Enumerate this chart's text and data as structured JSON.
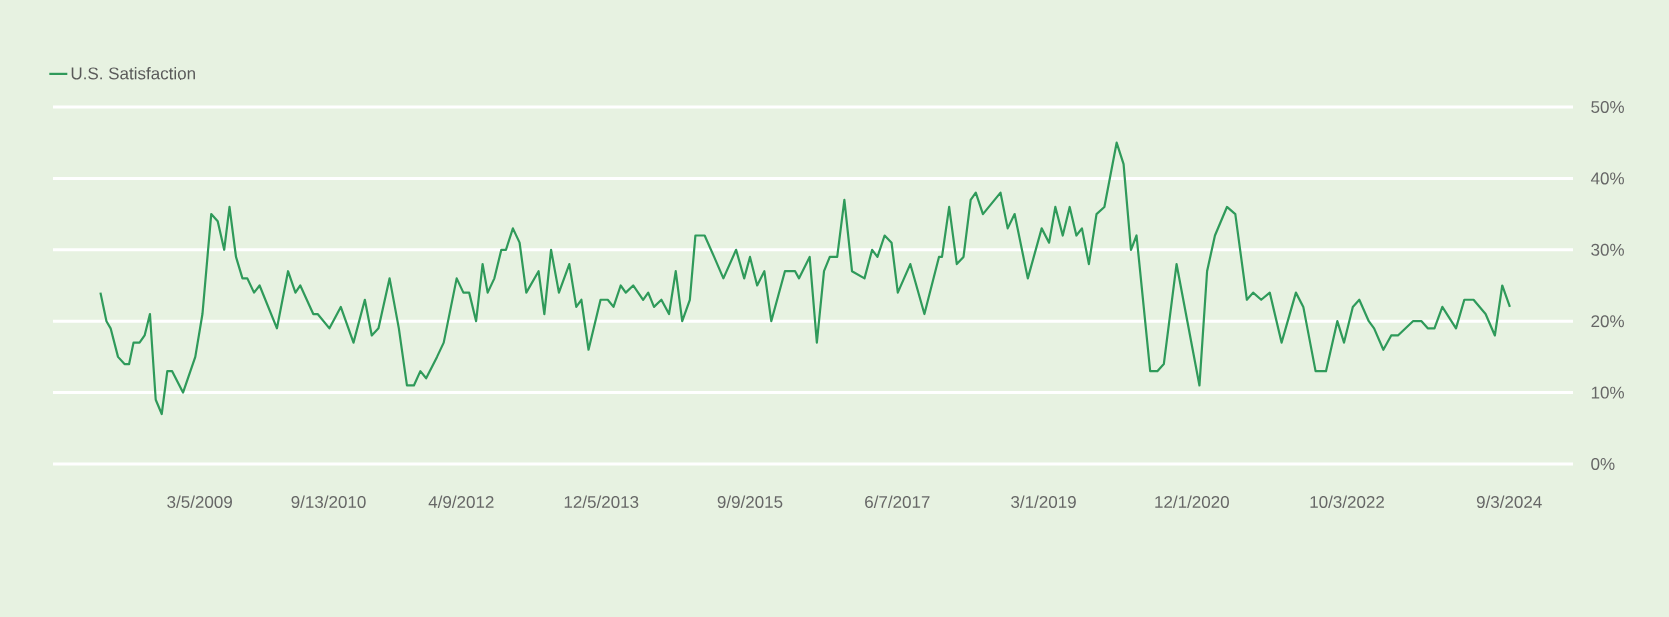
{
  "chart_data": {
    "type": "line",
    "x": [
      "2008-01-01",
      "2008-01-27",
      "2008-02-14",
      "2008-03-17",
      "2008-04-14",
      "2008-05-04",
      "2008-05-23",
      "2008-06-18",
      "2008-07-10",
      "2008-08-02",
      "2008-08-27",
      "2008-09-22",
      "2008-10-16",
      "2008-11-06",
      "2008-12-23",
      "2009-02-14",
      "2009-03-17",
      "2009-04-24",
      "2009-05-22",
      "2009-06-19",
      "2009-07-12",
      "2009-08-09",
      "2009-09-06",
      "2009-09-27",
      "2009-10-26",
      "2009-11-19",
      "2010-02-02",
      "2010-03-22",
      "2010-04-23",
      "2010-05-14",
      "2010-07-09",
      "2010-07-28",
      "2010-09-17",
      "2010-11-05",
      "2010-12-30",
      "2011-02-17",
      "2011-03-19",
      "2011-04-17",
      "2011-06-04",
      "2011-07-14",
      "2011-08-18",
      "2011-09-17",
      "2011-10-15",
      "2011-11-09",
      "2011-12-26",
      "2012-01-24",
      "2012-03-20",
      "2012-04-18",
      "2012-05-13",
      "2012-06-12",
      "2012-07-10",
      "2012-08-01",
      "2012-08-30",
      "2012-09-29",
      "2012-10-19",
      "2012-11-18",
      "2012-12-17",
      "2013-01-15",
      "2013-03-09",
      "2013-04-03",
      "2013-05-02",
      "2013-06-05",
      "2013-07-20",
      "2013-08-19",
      "2013-09-10",
      "2013-10-11",
      "2013-12-02",
      "2014-01-02",
      "2014-01-27",
      "2014-02-27",
      "2014-03-21",
      "2014-04-22",
      "2014-06-04",
      "2014-06-26",
      "2014-07-21",
      "2014-08-22",
      "2014-09-24",
      "2014-10-23",
      "2014-11-20",
      "2014-12-23",
      "2015-01-16",
      "2015-02-25",
      "2015-04-07",
      "2015-05-17",
      "2015-07-11",
      "2015-08-15",
      "2015-09-09",
      "2015-10-10",
      "2015-11-10",
      "2015-12-10",
      "2016-02-07",
      "2016-03-22",
      "2016-04-08",
      "2016-05-24",
      "2016-06-24",
      "2016-07-25",
      "2016-08-19",
      "2016-09-20",
      "2016-10-21",
      "2016-11-23",
      "2017-01-16",
      "2017-02-18",
      "2017-03-13",
      "2017-04-13",
      "2017-05-13",
      "2017-06-09",
      "2017-08-02",
      "2017-10-02",
      "2017-12-04",
      "2017-12-17",
      "2018-01-17",
      "2018-02-19",
      "2018-03-20",
      "2018-04-20",
      "2018-05-12",
      "2018-06-12",
      "2018-08-27",
      "2018-09-27",
      "2018-10-27",
      "2018-12-23",
      "2019-02-21",
      "2019-03-25",
      "2019-04-21",
      "2019-05-23",
      "2019-06-22",
      "2019-07-21",
      "2019-08-14",
      "2019-09-13",
      "2019-10-16",
      "2019-11-19",
      "2020-01-11",
      "2020-02-10",
      "2020-03-13",
      "2020-04-06",
      "2020-06-04",
      "2020-07-05",
      "2020-08-02",
      "2020-09-26",
      "2021-01-03",
      "2021-02-05",
      "2021-03-11",
      "2021-05-02",
      "2021-06-07",
      "2021-07-27",
      "2021-08-23",
      "2021-09-27",
      "2021-11-03",
      "2021-12-24",
      "2022-02-24",
      "2022-03-28",
      "2022-05-20",
      "2022-07-04",
      "2022-08-22",
      "2022-09-20",
      "2022-10-28",
      "2022-11-25",
      "2023-01-05",
      "2023-01-28",
      "2023-03-09",
      "2023-04-12",
      "2023-05-11",
      "2023-07-15",
      "2023-08-21",
      "2023-09-17",
      "2023-10-16",
      "2023-11-19",
      "2024-01-17",
      "2024-02-22",
      "2024-04-02",
      "2024-05-24",
      "2024-07-03",
      "2024-08-04",
      "2024-09-06"
    ],
    "series": [
      {
        "name": "U.S. Satisfaction",
        "color": "#2f9a5a",
        "values": [
          24,
          20,
          19,
          15,
          14,
          14,
          17,
          17,
          18,
          21,
          9,
          7,
          13,
          13,
          10,
          15,
          21,
          35,
          34,
          30,
          36,
          29,
          26,
          26,
          24,
          25,
          19,
          27,
          24,
          25,
          21,
          21,
          19,
          22,
          17,
          23,
          18,
          19,
          26,
          19,
          11,
          11,
          13,
          12,
          15,
          17,
          26,
          24,
          24,
          20,
          28,
          24,
          26,
          30,
          30,
          33,
          31,
          24,
          27,
          21,
          30,
          24,
          28,
          22,
          23,
          16,
          23,
          23,
          22,
          25,
          24,
          25,
          23,
          24,
          22,
          23,
          21,
          27,
          20,
          23,
          32,
          32,
          29,
          26,
          30,
          26,
          29,
          25,
          27,
          20,
          27,
          27,
          26,
          29,
          17,
          27,
          29,
          29,
          37,
          27,
          26,
          30,
          29,
          32,
          31,
          24,
          28,
          21,
          29,
          29,
          36,
          28,
          29,
          37,
          38,
          35,
          38,
          33,
          35,
          26,
          33,
          31,
          36,
          32,
          36,
          32,
          33,
          28,
          35,
          36,
          45,
          42,
          30,
          32,
          13,
          13,
          14,
          28,
          11,
          27,
          32,
          36,
          35,
          23,
          24,
          23,
          24,
          17,
          24,
          22,
          13,
          13,
          20,
          17,
          22,
          23,
          20,
          19,
          16,
          18,
          18,
          20,
          20,
          19,
          19,
          22,
          19,
          23,
          23,
          21,
          18,
          25,
          22
        ]
      }
    ],
    "xlim": [
      "2007-06-10",
      "2025-06-06"
    ],
    "xticks": [
      {
        "value": "2009-03-05",
        "label": "3/5/2009"
      },
      {
        "value": "2010-09-13",
        "label": "9/13/2010"
      },
      {
        "value": "2012-04-09",
        "label": "4/9/2012"
      },
      {
        "value": "2013-12-05",
        "label": "12/5/2013"
      },
      {
        "value": "2015-09-09",
        "label": "9/9/2015"
      },
      {
        "value": "2017-06-07",
        "label": "6/7/2017"
      },
      {
        "value": "2019-03-01",
        "label": "3/1/2019"
      },
      {
        "value": "2020-12-01",
        "label": "12/1/2020"
      },
      {
        "value": "2022-10-03",
        "label": "10/3/2022"
      },
      {
        "value": "2024-09-03",
        "label": "9/3/2024"
      }
    ],
    "ylim": [
      0,
      50
    ],
    "yticks": [
      {
        "value": 0,
        "label": "0%"
      },
      {
        "value": 10,
        "label": "10%"
      },
      {
        "value": 20,
        "label": "20%"
      },
      {
        "value": 30,
        "label": "30%"
      },
      {
        "value": 40,
        "label": "40%"
      },
      {
        "value": 50,
        "label": "50%"
      }
    ],
    "grid": "y",
    "legend": "top left",
    "marker": "none"
  }
}
